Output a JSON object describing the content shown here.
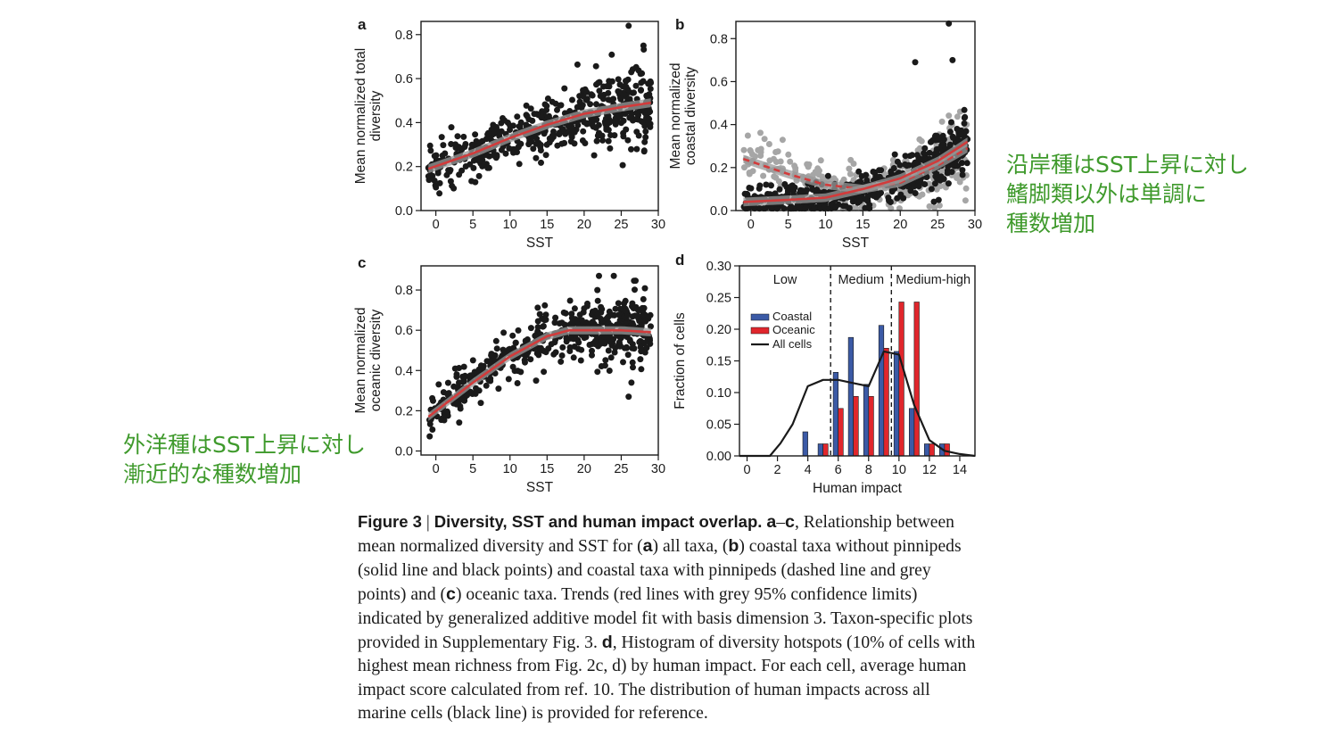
{
  "annotations": {
    "right": [
      "沿岸種はSST上昇に対し",
      "鰭脚類以外は単調に",
      "種数増加"
    ],
    "left": [
      "外洋種はSST上昇に対し",
      "漸近的な種数増加"
    ],
    "color": "#3f9a2c"
  },
  "caption": {
    "head": "Figure 3",
    "sep": " | ",
    "title": "Diversity, SST and human impact overlap.",
    "body": [
      {
        "t": "  "
      },
      {
        "b": "a"
      },
      {
        "t": "–"
      },
      {
        "b": "c"
      },
      {
        "t": ", Relationship between mean normalized diversity and SST for ("
      },
      {
        "b": "a"
      },
      {
        "t": ") all taxa, ("
      },
      {
        "b": "b"
      },
      {
        "t": ") coastal taxa without pinnipeds (solid line and black points) and coastal taxa with pinnipeds (dashed line and grey points) and ("
      },
      {
        "b": "c"
      },
      {
        "t": ") oceanic taxa. Trends (red lines with grey 95% confidence limits) indicated by generalized additive model fit with basis dimension 3. Taxon-specific plots provided in Supplementary Fig. 3. "
      },
      {
        "b": "d"
      },
      {
        "t": ", Histogram of diversity hotspots (10% of cells with highest mean richness from Fig. 2c, d) by human impact. For each cell, average human impact score calculated from ref. 10. The distribution of human impacts across all marine cells (black line) is provided for reference."
      }
    ]
  },
  "chart_data": [
    {
      "panel": "a",
      "type": "scatter",
      "xlabel": "SST",
      "ylabel": "Mean normalized total diversity",
      "xlim": [
        -2,
        30
      ],
      "ylim": [
        0,
        0.86
      ],
      "xticks": [
        0,
        5,
        10,
        15,
        20,
        25,
        30
      ],
      "yticks": [
        0.0,
        0.2,
        0.4,
        0.6,
        0.8
      ],
      "points": {
        "n": 520,
        "seed": 11,
        "spread": 0.07,
        "color": "#1a1a1a"
      },
      "trend": {
        "x": [
          -1,
          5,
          10,
          15,
          20,
          25,
          29
        ],
        "y": [
          0.19,
          0.26,
          0.33,
          0.39,
          0.44,
          0.47,
          0.49
        ],
        "color": "#d23b3b"
      },
      "outliers": [
        [
          26,
          0.84
        ],
        [
          28,
          0.75
        ]
      ]
    },
    {
      "panel": "b",
      "type": "scatter",
      "xlabel": "SST",
      "ylabel": "Mean normalized coastal diversity",
      "xlim": [
        -2,
        30
      ],
      "ylim": [
        0,
        0.88
      ],
      "xticks": [
        0,
        5,
        10,
        15,
        20,
        25,
        30
      ],
      "yticks": [
        0.0,
        0.2,
        0.4,
        0.6,
        0.8
      ],
      "series": [
        {
          "name": "coastal taxa with pinnipeds",
          "color": "#a6a6a6",
          "n": 330,
          "seed": 23,
          "spread": 0.06,
          "trend": {
            "x": [
              -1,
              5,
              10,
              15,
              20,
              25,
              29
            ],
            "y": [
              0.24,
              0.17,
              0.12,
              0.1,
              0.13,
              0.21,
              0.29
            ],
            "color": "#d23b3b",
            "dash": true
          }
        },
        {
          "name": "coastal taxa without pinnipeds",
          "color": "#1a1a1a",
          "n": 500,
          "seed": 37,
          "spread": 0.05,
          "trend": {
            "x": [
              -1,
              5,
              10,
              15,
              20,
              25,
              29
            ],
            "y": [
              0.04,
              0.05,
              0.06,
              0.1,
              0.15,
              0.23,
              0.32
            ],
            "color": "#d23b3b",
            "dash": false
          }
        }
      ],
      "outliers": [
        [
          26.5,
          0.87
        ],
        [
          27,
          0.7
        ],
        [
          22,
          0.69
        ]
      ]
    },
    {
      "panel": "c",
      "type": "scatter",
      "xlabel": "SST",
      "ylabel": "Mean normalized oceanic diversity",
      "xlim": [
        -2,
        30
      ],
      "ylim": [
        -0.02,
        0.92
      ],
      "xticks": [
        0,
        5,
        10,
        15,
        20,
        25,
        30
      ],
      "yticks": [
        0.0,
        0.2,
        0.4,
        0.6,
        0.8
      ],
      "points": {
        "n": 520,
        "seed": 53,
        "spread": 0.07,
        "color": "#1a1a1a"
      },
      "trend": {
        "x": [
          -1,
          5,
          10,
          15,
          18,
          22,
          25,
          29
        ],
        "y": [
          0.17,
          0.34,
          0.47,
          0.57,
          0.6,
          0.6,
          0.6,
          0.59
        ],
        "color": "#d23b3b"
      },
      "outliers": [
        [
          22,
          0.87
        ],
        [
          24,
          0.87
        ],
        [
          26,
          0.27
        ]
      ]
    },
    {
      "panel": "d",
      "type": "bar",
      "xlabel": "Human impact",
      "ylabel": "Fraction of cells",
      "xlim": [
        -0.5,
        15
      ],
      "ylim": [
        0,
        0.3
      ],
      "xticks": [
        0,
        2,
        4,
        6,
        8,
        10,
        12,
        14
      ],
      "yticks": [
        0.0,
        0.05,
        0.1,
        0.15,
        0.2,
        0.25,
        0.3
      ],
      "ytick_labels": [
        "0.00",
        "0.05",
        "0.10",
        "0.15",
        "0.20",
        "0.25",
        "0.30"
      ],
      "regions": [
        "Low",
        "Medium",
        "Medium-high"
      ],
      "thresholds": [
        5.5,
        9.5
      ],
      "centers": [
        4,
        5,
        6,
        7,
        8,
        9,
        10,
        11,
        12,
        13
      ],
      "series": [
        {
          "name": "Coastal",
          "color": "#3b5aa6",
          "values": [
            0.038,
            0.019,
            0.132,
            0.187,
            0.113,
            0.206,
            0.165,
            0.075,
            0.019,
            0.019
          ]
        },
        {
          "name": "Oceanic",
          "color": "#e0262c",
          "values": [
            0.0,
            0.019,
            0.075,
            0.094,
            0.094,
            0.17,
            0.243,
            0.243,
            0.019,
            0.019
          ]
        }
      ],
      "all_cells": {
        "name": "All cells",
        "color": "#1a1a1a",
        "x": [
          -0.5,
          1.5,
          2.2,
          3,
          4,
          5,
          6,
          7,
          8,
          9,
          10,
          11,
          12,
          13,
          14,
          15
        ],
        "y": [
          0,
          0,
          0.02,
          0.05,
          0.11,
          0.12,
          0.12,
          0.115,
          0.11,
          0.165,
          0.16,
          0.08,
          0.025,
          0.008,
          0.003,
          0
        ]
      }
    }
  ]
}
